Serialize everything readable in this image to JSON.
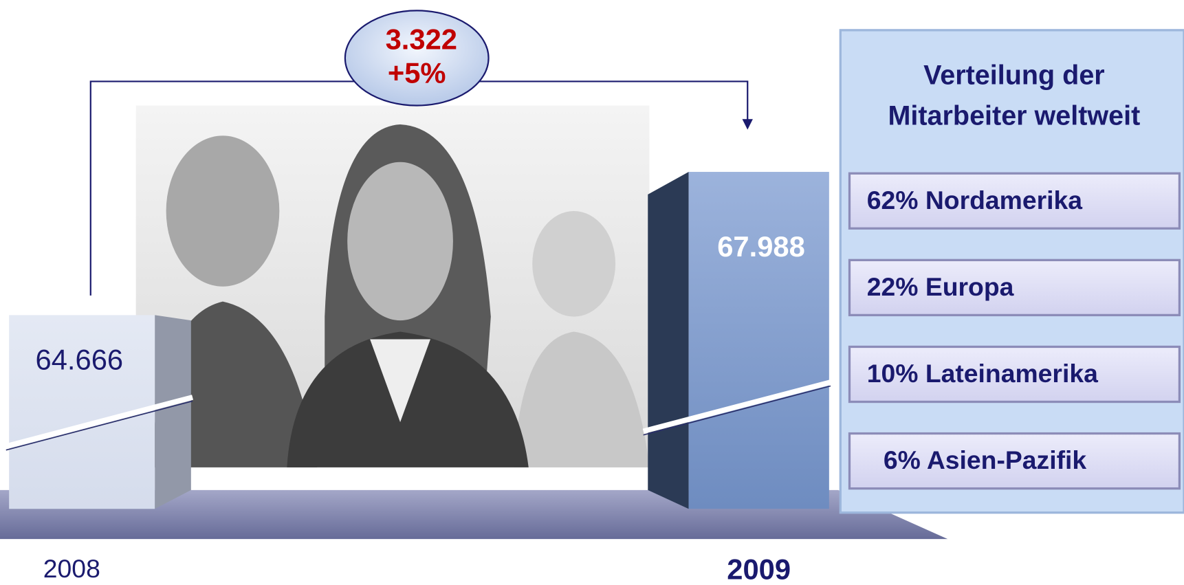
{
  "callout": {
    "difference": "3.322",
    "percent": "+5%"
  },
  "bars": [
    {
      "year": "2008",
      "value": "64.666"
    },
    {
      "year": "2009",
      "value": "67.988"
    }
  ],
  "panel": {
    "title": [
      "Verteilung der",
      "Mitarbeiter weltweit"
    ],
    "items": [
      "62% Nordamerika",
      "22% Europa",
      "10% Lateinamerika",
      "6% Asien-Pazifik"
    ]
  }
}
